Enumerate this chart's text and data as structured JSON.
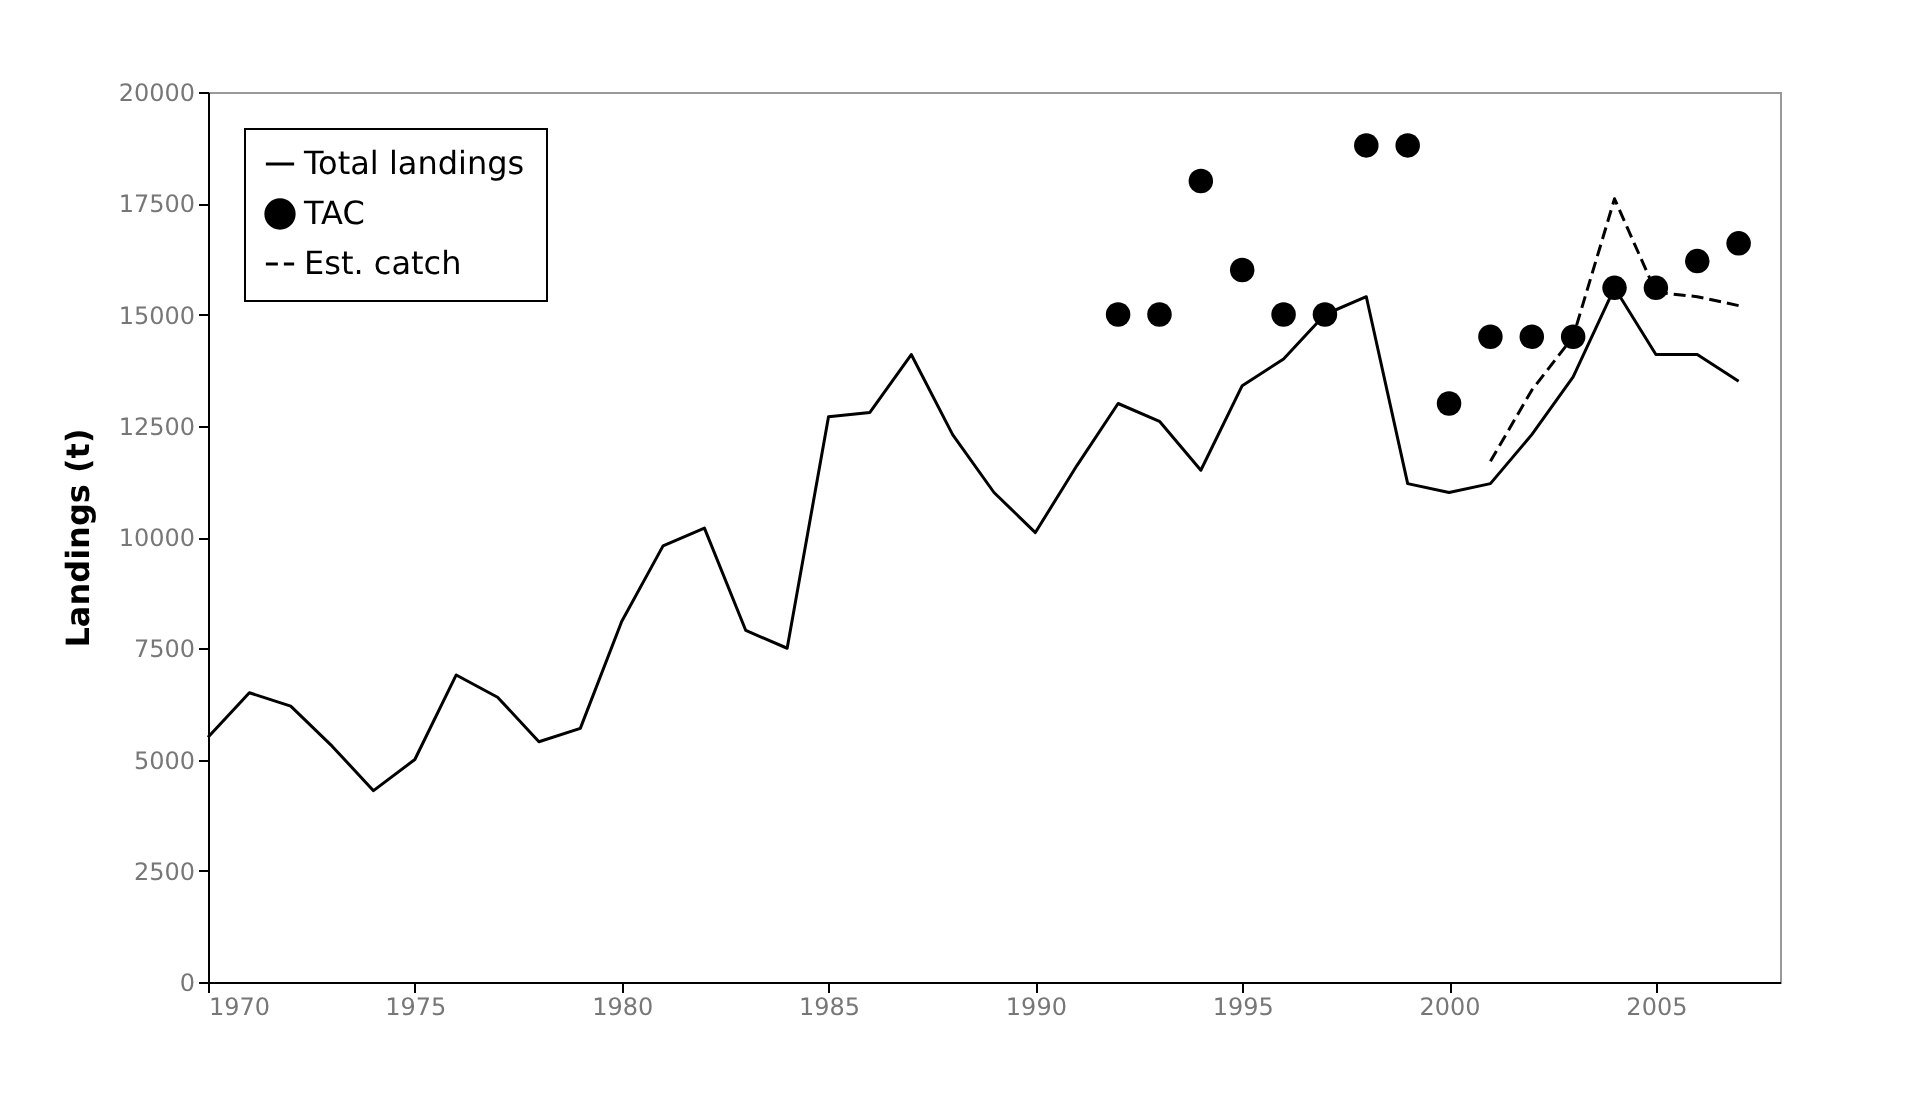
{
  "chart_data": {
    "type": "line",
    "ylabel": "Landings (t)",
    "x": [
      1970,
      1971,
      1972,
      1973,
      1974,
      1975,
      1976,
      1977,
      1978,
      1979,
      1980,
      1981,
      1982,
      1983,
      1984,
      1985,
      1986,
      1987,
      1988,
      1989,
      1990,
      1991,
      1992,
      1993,
      1994,
      1995,
      1996,
      1997,
      1998,
      1999,
      2000,
      2001,
      2002,
      2003,
      2004,
      2005,
      2006,
      2007
    ],
    "series": [
      {
        "name": "Total landings",
        "color": "#000000",
        "line_style": "solid",
        "values": [
          5500,
          6500,
          6200,
          5300,
          4300,
          5000,
          6900,
          6400,
          5400,
          5700,
          8100,
          9800,
          10200,
          7900,
          7500,
          12700,
          12800,
          14100,
          12300,
          11000,
          10100,
          11600,
          13000,
          12600,
          11500,
          13400,
          14000,
          15000,
          15400,
          11200,
          11000,
          11200,
          12300,
          13600,
          15600,
          14100,
          14100,
          13500
        ]
      },
      {
        "name": "TAC",
        "color": "#000000",
        "type": "scatter",
        "marker": "circle",
        "x": [
          1992,
          1993,
          1994,
          1995,
          1996,
          1997,
          1998,
          1999,
          2000,
          2001,
          2002,
          2003,
          2004,
          2005,
          2006,
          2007
        ],
        "values": [
          15000,
          15000,
          18000,
          16000,
          15000,
          15000,
          18800,
          18800,
          13000,
          14500,
          14500,
          14500,
          15600,
          15600,
          16200,
          16600
        ]
      },
      {
        "name": "Est. catch",
        "color": "#000000",
        "type": "line",
        "line_style": "dashed",
        "x": [
          2001,
          2002,
          2003,
          2004,
          2005,
          2006,
          2007
        ],
        "values": [
          11700,
          13300,
          14500,
          17600,
          15500,
          15400,
          15200
        ]
      }
    ],
    "xlim": [
      1970,
      2008
    ],
    "xticks": [
      1970,
      1975,
      1980,
      1985,
      1990,
      1995,
      2000,
      2005
    ],
    "ylim": [
      0,
      20000
    ],
    "yticks": [
      0,
      2500,
      5000,
      7500,
      10000,
      12500,
      15000,
      17500,
      20000
    ],
    "grid": false,
    "legend": "top left"
  }
}
